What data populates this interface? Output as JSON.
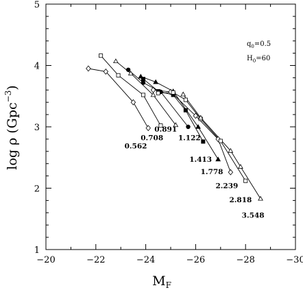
{
  "chart_data": {
    "type": "line",
    "xlabel": "M",
    "xlabel_sub": "F",
    "ylabel": "log  ρ  (Gpc",
    "ylabel_sup": "−3",
    "ylabel_close": ")",
    "xlim": [
      -20,
      -30
    ],
    "ylim": [
      1,
      5
    ],
    "x_ticks": [
      -20,
      -22,
      -24,
      -26,
      -28,
      -30
    ],
    "x_tick_labels": [
      "−20",
      "−22",
      "−24",
      "−26",
      "−28",
      "−30"
    ],
    "y_ticks": [
      1,
      2,
      3,
      4,
      5
    ],
    "y_tick_labels": [
      "1",
      "2",
      "3",
      "4",
      "5"
    ],
    "annotations": [
      {
        "text": "q",
        "sub": "0",
        "rest": "=0.5"
      },
      {
        "text": "H",
        "sub": "0",
        "rest": "=60"
      }
    ],
    "series": [
      {
        "name": "0.562",
        "marker": "diamond-open",
        "x": [
          -21.7,
          -22.4,
          -23.5,
          -24.1
        ],
        "y": [
          3.95,
          3.9,
          3.4,
          2.98
        ]
      },
      {
        "name": "0.708",
        "marker": "square-open",
        "x": [
          -22.2,
          -22.9,
          -23.9,
          -24.6
        ],
        "y": [
          4.16,
          3.84,
          3.52,
          3.02
        ]
      },
      {
        "name": "0.891",
        "marker": "triangle-open",
        "x": [
          -22.8,
          -23.4,
          -24.3,
          -25.2
        ],
        "y": [
          4.07,
          3.87,
          3.52,
          3.03
        ]
      },
      {
        "name": "1.122",
        "marker": "circle-filled",
        "x": [
          -23.3,
          -23.9,
          -24.6,
          -25.7
        ],
        "y": [
          3.93,
          3.72,
          3.57,
          3.0
        ]
      },
      {
        "name": "1.413",
        "marker": "triangle-filled",
        "x": [
          -23.8,
          -24.4,
          -25.1,
          -26.1,
          -26.9
        ],
        "y": [
          3.82,
          3.73,
          3.58,
          3.0,
          2.47
        ]
      },
      {
        "name": "1.778",
        "marker": "square-filled",
        "x": [
          -23.9,
          -24.5,
          -25.1,
          -25.6,
          -26.3
        ],
        "y": [
          3.78,
          3.58,
          3.52,
          3.27,
          2.76
        ]
      },
      {
        "name": "2.239",
        "marker": "diamond-open",
        "x": [
          -24.3,
          -25.0,
          -26.0,
          -26.9,
          -27.4
        ],
        "y": [
          3.6,
          3.57,
          3.18,
          2.8,
          2.26
        ]
      },
      {
        "name": "2.818",
        "marker": "square-open",
        "x": [
          -24.5,
          -25.1,
          -25.6,
          -26.2,
          -27.0,
          -28.0
        ],
        "y": [
          3.55,
          3.56,
          3.44,
          3.13,
          2.77,
          2.12
        ]
      },
      {
        "name": "3.548",
        "marker": "triangle-open",
        "x": [
          -25.5,
          -26.2,
          -27.4,
          -27.8,
          -28.6
        ],
        "y": [
          3.53,
          3.15,
          2.61,
          2.35,
          1.83
        ]
      }
    ],
    "curve_labels": [
      {
        "text": "0.562",
        "x": -23.6,
        "y": 2.65
      },
      {
        "text": "0.708",
        "x": -24.25,
        "y": 2.78
      },
      {
        "text": "0.891",
        "x": -24.8,
        "y": 2.92
      },
      {
        "text": "1.122",
        "x": -25.75,
        "y": 2.78
      },
      {
        "text": "1.413",
        "x": -26.2,
        "y": 2.43
      },
      {
        "text": "1.778",
        "x": -26.65,
        "y": 2.23
      },
      {
        "text": "2.239",
        "x": -27.25,
        "y": 2.0
      },
      {
        "text": "2.818",
        "x": -27.8,
        "y": 1.77
      },
      {
        "text": "3.548",
        "x": -28.3,
        "y": 1.52
      }
    ]
  }
}
